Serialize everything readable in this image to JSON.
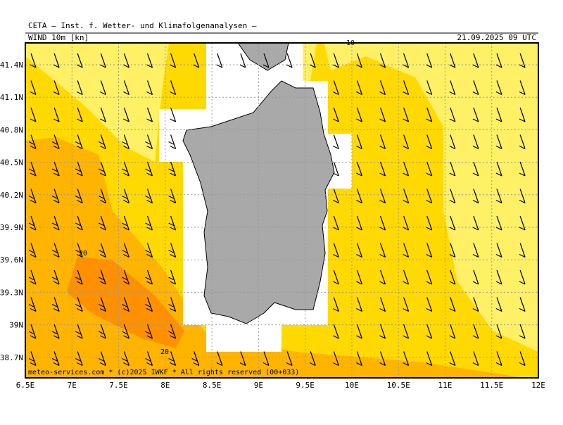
{
  "header": {
    "title": "CETA — Inst. f. Wetter- und Klimafolgenanalysen —",
    "subtitle": "WIND 10m [kn]",
    "date": "21.09.2025 09 UTC"
  },
  "lat_labels": [
    "41.4N",
    "41.1N",
    "40.8N",
    "40.5N",
    "40.2N",
    "39.9N",
    "39.6N",
    "39.3N",
    "39N",
    "38.7N"
  ],
  "lon_labels": [
    "6.5E",
    "7E",
    "7.5E",
    "8E",
    "8.5E",
    "9E",
    "9.5E",
    "10E",
    "10.5E",
    "11E",
    "11.5E",
    "12E"
  ],
  "contour_labels": [
    "10",
    "20",
    "20"
  ],
  "footer": "meteo-services.com * (c)2025 IWKF * All rights reserved (00+033)"
}
